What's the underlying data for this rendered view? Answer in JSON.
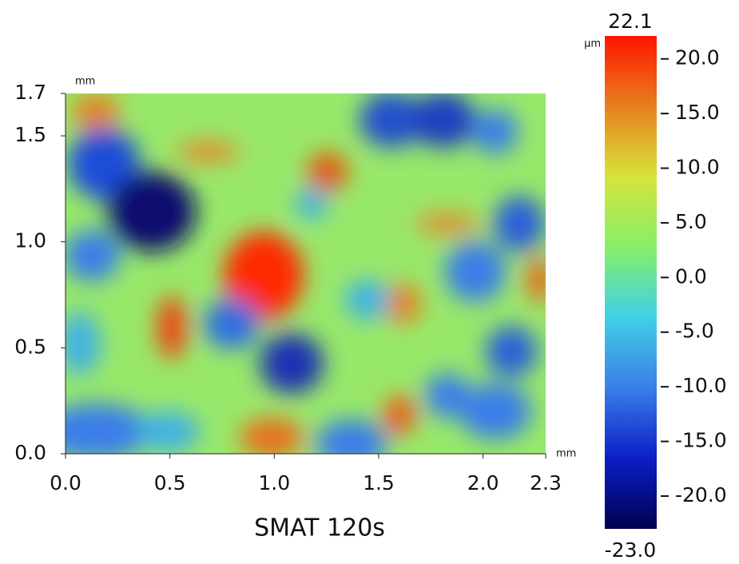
{
  "chart_data": {
    "type": "heatmap",
    "caption": "SMAT 120s",
    "x_unit": "mm",
    "y_unit": "mm",
    "colorbar_unit": "µm",
    "xlim": [
      0,
      2.3
    ],
    "xticks": [
      {
        "value": 0,
        "label": "0.0"
      },
      0.5,
      {
        "value": 1,
        "label": "1.0"
      },
      1.5,
      {
        "value": 2,
        "label": "2.0"
      },
      2.3
    ],
    "ylim": [
      0,
      1.7
    ],
    "yticks": [
      {
        "value": 0,
        "label": "0.0"
      },
      0.5,
      {
        "value": 1,
        "label": "1.0"
      },
      1.5,
      1.7
    ],
    "clim": [
      -23,
      22.1
    ],
    "clim_labels": [
      "-23.0",
      "22.1"
    ],
    "cticks": [
      {
        "value": 20,
        "label": "20.0"
      },
      {
        "value": 15,
        "label": "15.0"
      },
      {
        "value": 10,
        "label": "10.0"
      },
      {
        "value": 5,
        "label": "5.0"
      },
      {
        "value": 0,
        "label": "0.0"
      },
      {
        "value": -5,
        "label": "-5.0"
      },
      {
        "value": -10,
        "label": "-10.0"
      },
      {
        "value": -15,
        "label": "-15.0"
      },
      {
        "value": -20,
        "label": "-20.0"
      }
    ],
    "colormap": [
      "#00004f",
      "#0a1fc8",
      "#3a7ee8",
      "#40d0e6",
      "#86ef68",
      "#d6e43a",
      "#e8801e",
      "#ff1500"
    ]
  }
}
